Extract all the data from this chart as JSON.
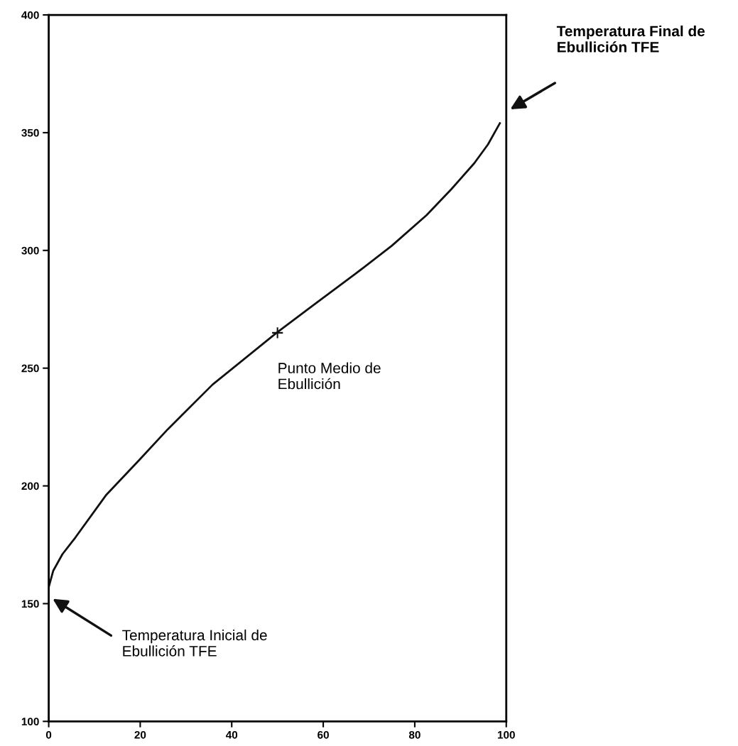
{
  "chart_data": {
    "type": "line",
    "xlim": [
      0,
      100
    ],
    "ylim": [
      100,
      400
    ],
    "xticks": [
      0,
      20,
      40,
      60,
      80,
      100
    ],
    "yticks": [
      100,
      150,
      200,
      250,
      300,
      350,
      400
    ],
    "grid": false,
    "legend": false,
    "series": [
      {
        "color": "#111111",
        "marker": "none",
        "line_style": "solid",
        "x": [
          0,
          1,
          3,
          5.8,
          12.5,
          19.8,
          26,
          35.8,
          49.8,
          58,
          67,
          75,
          82.6,
          88,
          93,
          96,
          98.6
        ],
        "values": [
          157,
          164,
          171,
          178,
          196,
          211,
          224,
          243,
          265,
          277,
          290,
          302,
          315,
          326,
          337,
          345,
          354
        ]
      },
      {
        "type": "scatter",
        "color": "#111111",
        "marker": "cross",
        "x": [
          50
        ],
        "values": [
          265
        ]
      }
    ],
    "annotations": [
      "Temperatura Inicial de\nEbullición TFE",
      {
        "text": "Punto Medio de\nEbullición",
        "x": 50,
        "y": 265
      },
      "Temperatura Final de\nEbullición TFE"
    ]
  }
}
